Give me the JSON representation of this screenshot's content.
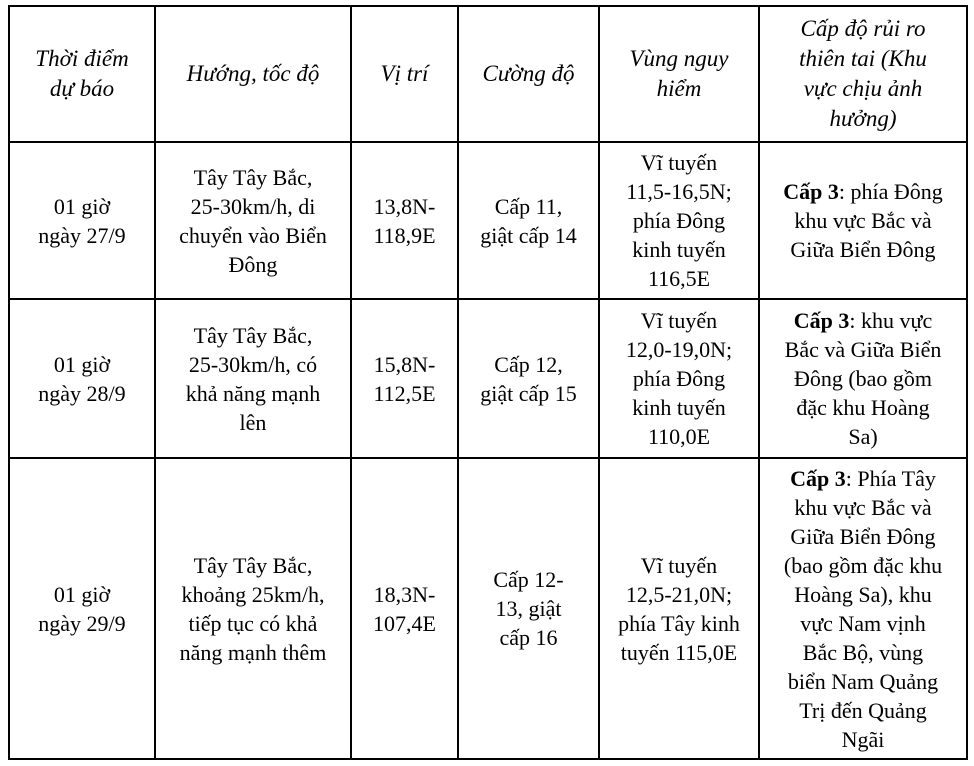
{
  "headers": [
    "Thời điểm\ndự báo",
    "Hướng, tốc độ",
    "Vị trí",
    "Cường độ",
    "Vùng nguy\nhiểm",
    "Cấp độ rủi ro\nthiên tai (Khu\nvực chịu ảnh\nhưởng)"
  ],
  "rows": [
    {
      "time": "01 giờ\nngày 27/9",
      "direction": "Tây Tây Bắc,\n25-30km/h, di\nchuyển vào Biển\nĐông",
      "position": "13,8N-\n118,9E",
      "intensity": "Cấp 11,\ngiật cấp 14",
      "danger_zone": "Vĩ tuyến\n11,5-16,5N;\nphía Đông\nkinh tuyến\n116,5E",
      "risk_level": "Cấp 3",
      "risk_area": ": phía Đông\nkhu vực Bắc và\nGiữa Biển Đông"
    },
    {
      "time": "01 giờ\nngày 28/9",
      "direction": "Tây Tây Bắc,\n25-30km/h, có\nkhả năng mạnh\nlên",
      "position": "15,8N-\n112,5E",
      "intensity": "Cấp 12,\ngiật cấp 15",
      "danger_zone": "Vĩ tuyến\n12,0-19,0N;\nphía Đông\nkinh tuyến\n110,0E",
      "risk_level": "Cấp 3",
      "risk_area": ": khu vực\nBắc và Giữa Biển\nĐông (bao gồm\nđặc khu Hoàng\nSa)"
    },
    {
      "time": "01 giờ\nngày 29/9",
      "direction": "Tây Tây Bắc,\nkhoảng 25km/h,\ntiếp tục có khả\nnăng mạnh thêm",
      "position": "18,3N-\n107,4E",
      "intensity": "Cấp 12-\n13, giật\ncấp 16",
      "danger_zone": "Vĩ tuyến\n12,5-21,0N;\nphía Tây kinh\ntuyến 115,0E",
      "risk_level": "Cấp 3",
      "risk_area": ": Phía Tây\nkhu vực Bắc và\nGiữa Biển Đông\n(bao gồm đặc khu\nHoàng Sa), khu\nvực Nam vịnh\nBắc Bộ, vùng\nbiển Nam Quảng\nTrị đến Quảng\nNgãi"
    }
  ]
}
